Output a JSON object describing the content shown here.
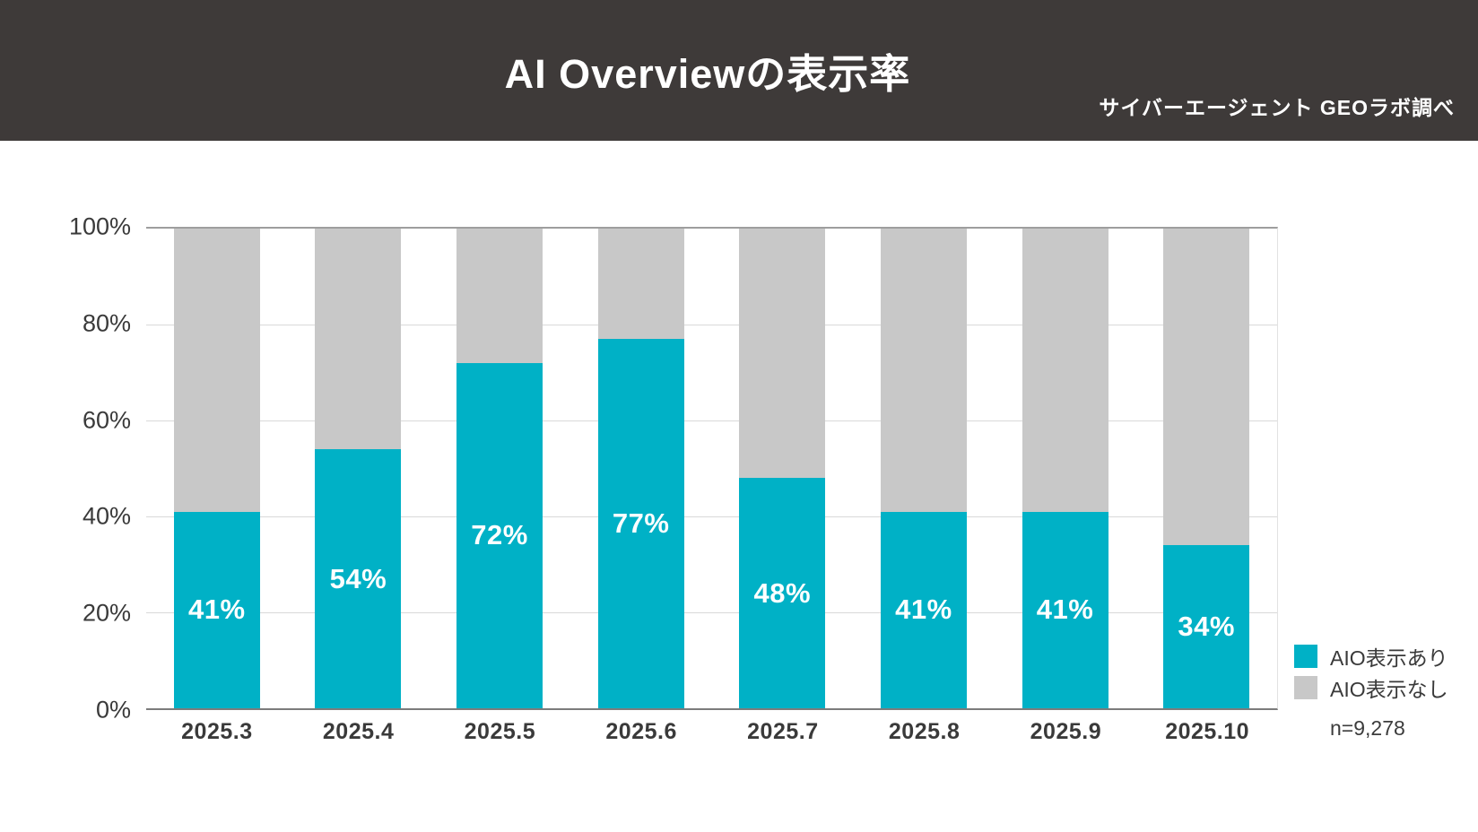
{
  "header": {
    "title": "AI Overviewの表示率",
    "source": "サイバーエージェント GEOラボ調べ"
  },
  "chart_data": {
    "type": "bar",
    "stacked": true,
    "orientation": "vertical",
    "title": "AI Overviewの表示率",
    "categories": [
      "2025.3",
      "2025.4",
      "2025.5",
      "2025.6",
      "2025.7",
      "2025.8",
      "2025.9",
      "2025.10"
    ],
    "series": [
      {
        "name": "AIO表示あり",
        "color": "#00b1c6",
        "values": [
          41,
          54,
          72,
          77,
          48,
          41,
          41,
          34
        ]
      },
      {
        "name": "AIO表示なし",
        "color": "#c8c8c8",
        "values": [
          59,
          46,
          28,
          23,
          52,
          59,
          59,
          66
        ]
      }
    ],
    "value_labels": [
      "41%",
      "54%",
      "72%",
      "77%",
      "48%",
      "41%",
      "41%",
      "34%"
    ],
    "y_ticks": [
      "100%",
      "80%",
      "60%",
      "40%",
      "20%",
      "0%"
    ],
    "ylim": [
      0,
      100
    ],
    "grid": true,
    "legend_position": "bottom-right",
    "sample_size": "n=9,278"
  },
  "legend": {
    "items": [
      {
        "label": "AIO表示あり",
        "color": "#00b1c6"
      },
      {
        "label": "AIO表示なし",
        "color": "#c8c8c8"
      }
    ],
    "note": "n=9,278"
  },
  "colors": {
    "header_bg": "#3e3a39",
    "bar_shown": "#00b1c6",
    "bar_none": "#c8c8c8",
    "axis_text": "#3a3a3a",
    "gridline": "#d9d9d9",
    "top_line": "#9e9e9e",
    "axis_line": "#7c7c7c"
  }
}
